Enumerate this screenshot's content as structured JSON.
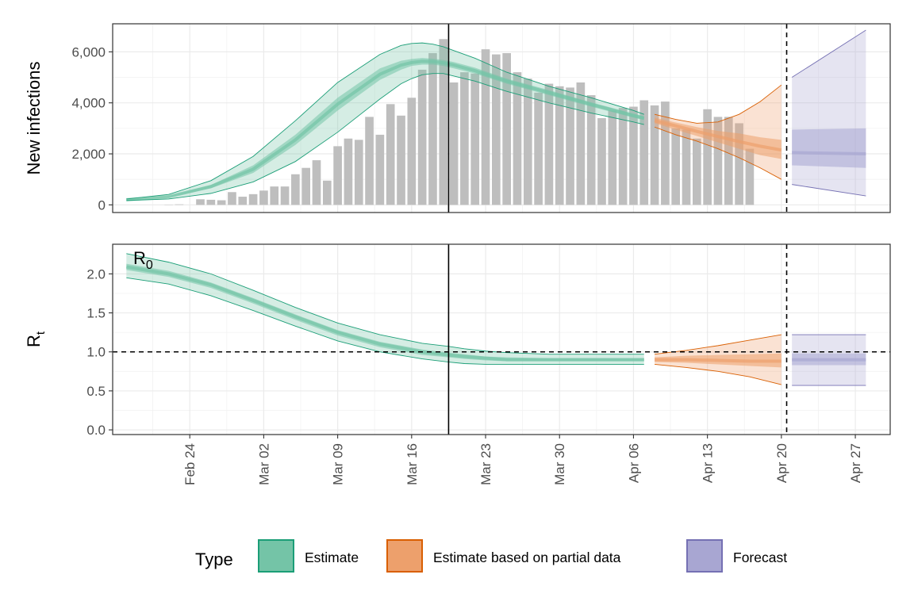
{
  "chart_data": {
    "type": "area",
    "x_tick_labels": [
      "Feb 24",
      "Mar 02",
      "Mar 09",
      "Mar 16",
      "Mar 23",
      "Mar 30",
      "Apr 06",
      "Apr 13",
      "Apr 20",
      "Apr 27"
    ],
    "x_tick_days": [
      0,
      7,
      14,
      21,
      28,
      35,
      42,
      49,
      56,
      63
    ],
    "x_range_days": [
      -7.3,
      66.3
    ],
    "vlines": [
      {
        "day": 24.5,
        "style": "solid"
      },
      {
        "day": 56.5,
        "style": "dashed"
      }
    ],
    "legend": {
      "title": "Type",
      "position": "bottom",
      "items": [
        {
          "label": "Estimate",
          "fill": "#74c4a7",
          "stroke": "#1b9e77"
        },
        {
          "label": "Estimate based on partial data",
          "fill": "#eda06c",
          "stroke": "#d95f02"
        },
        {
          "label": "Forecast",
          "fill": "#a8a6d2",
          "stroke": "#7570b3"
        }
      ]
    },
    "colors": {
      "Estimate": "#1b9e77",
      "Estimate based on partial data": "#d95f02",
      "Forecast": "#7570b3",
      "bars": "#bebebe"
    },
    "panels": [
      {
        "id": "infections",
        "ylabel": "New infections",
        "ylim": [
          -300,
          7100
        ],
        "yticks": [
          0,
          2000,
          4000,
          6000
        ],
        "ytick_labels": [
          "0",
          "2,000",
          "4,000",
          "6,000"
        ],
        "observed_bars": {
          "start_day": -3,
          "values": [
            0,
            10,
            20,
            0,
            220,
            200,
            180,
            500,
            320,
            420,
            560,
            720,
            720,
            1200,
            1450,
            1750,
            950,
            2300,
            2600,
            2550,
            3450,
            2750,
            3950,
            3500,
            4200,
            5300,
            5950,
            6500,
            4800,
            5200,
            5150,
            6100,
            5900,
            5950,
            5200,
            4950,
            4400,
            4750,
            4650,
            4600,
            4800,
            4300,
            3400,
            3700,
            3800,
            3850,
            4100,
            3900,
            4050,
            3000,
            2950,
            2600,
            3750,
            3450,
            3450,
            3200,
            2200
          ]
        },
        "bands": [
          {
            "type": "Estimate",
            "x": [
              -6,
              -2,
              2,
              6,
              10,
              14,
              18,
              20,
              21,
              22,
              23,
              24,
              25,
              27,
              30,
              34,
              38,
              42,
              43
            ],
            "lower90": [
              170,
              230,
              450,
              900,
              1700,
              2850,
              4150,
              4750,
              4950,
              5100,
              5150,
              5150,
              5050,
              4850,
              4450,
              4000,
              3600,
              3250,
              3150
            ],
            "upper90": [
              230,
              410,
              950,
              1900,
              3300,
              4800,
              5900,
              6250,
              6330,
              6350,
              6300,
              6200,
              6050,
              5750,
              5200,
              4650,
              4200,
              3700,
              3550
            ],
            "lower50": [
              190,
              300,
              650,
              1250,
              2350,
              3700,
              4900,
              5300,
              5450,
              5500,
              5500,
              5450,
              5350,
              5150,
              4750,
              4300,
              3850,
              3420,
              3330
            ],
            "upper50": [
              210,
              340,
              780,
              1550,
              2750,
              4200,
              5350,
              5650,
              5720,
              5760,
              5730,
              5680,
              5600,
              5380,
              4950,
              4500,
              4020,
              3580,
              3470
            ],
            "median": [
              200,
              320,
              720,
              1400,
              2550,
              3950,
              5120,
              5480,
              5580,
              5630,
              5620,
              5570,
              5480,
              5260,
              4850,
              4400,
              3940,
              3500,
              3400
            ]
          },
          {
            "type": "Estimate based on partial data",
            "x": [
              44,
              46,
              48,
              50,
              52,
              54,
              56
            ],
            "lower90": [
              3050,
              2750,
              2500,
              2200,
              1850,
              1450,
              1000
            ],
            "upper90": [
              3550,
              3350,
              3200,
              3250,
              3550,
              4050,
              4700
            ],
            "lower50": [
              3200,
              2950,
              2700,
              2450,
              2200,
              1950,
              1800
            ],
            "upper50": [
              3420,
              3230,
              3050,
              2900,
              2800,
              2650,
              2550
            ],
            "median": [
              3300,
              3100,
              2880,
              2680,
              2480,
              2300,
              2150
            ]
          },
          {
            "type": "Forecast",
            "x": [
              57,
              64
            ],
            "lower90": [
              800,
              350
            ],
            "upper90": [
              5000,
              6850
            ],
            "lower50": [
              1550,
              1450
            ],
            "upper50": [
              2950,
              3000
            ],
            "median": [
              2050,
              2000
            ]
          }
        ]
      },
      {
        "id": "rt",
        "ylabel": "R",
        "ylabel_subscript": "t",
        "annotation": {
          "text": "R",
          "subscript": "0"
        },
        "ylim": [
          -0.06,
          2.38
        ],
        "yticks": [
          0,
          0.5,
          1,
          1.5,
          2
        ],
        "ytick_labels": [
          "0.0",
          "0.5",
          "1.0",
          "1.5",
          "2.0"
        ],
        "hline": {
          "y": 1.0,
          "style": "dashed"
        },
        "bands": [
          {
            "type": "Estimate",
            "x": [
              -6,
              -2,
              2,
              6,
              10,
              14,
              18,
              22,
              24.5,
              26,
              28,
              30,
              34,
              38,
              42,
              43
            ],
            "lower90": [
              1.95,
              1.87,
              1.72,
              1.53,
              1.33,
              1.14,
              1.0,
              0.91,
              0.87,
              0.85,
              0.84,
              0.84,
              0.84,
              0.84,
              0.84,
              0.84
            ],
            "upper90": [
              2.26,
              2.15,
              2.0,
              1.79,
              1.57,
              1.37,
              1.22,
              1.11,
              1.07,
              1.04,
              1.01,
              0.99,
              0.97,
              0.97,
              0.97,
              0.97
            ],
            "lower50": [
              2.05,
              1.96,
              1.82,
              1.62,
              1.41,
              1.21,
              1.06,
              0.96,
              0.93,
              0.91,
              0.89,
              0.88,
              0.88,
              0.88,
              0.88,
              0.88
            ],
            "upper50": [
              2.13,
              2.04,
              1.89,
              1.69,
              1.48,
              1.28,
              1.13,
              1.03,
              0.99,
              0.97,
              0.94,
              0.93,
              0.92,
              0.92,
              0.92,
              0.92
            ],
            "median": [
              2.09,
              2.0,
              1.86,
              1.66,
              1.45,
              1.25,
              1.1,
              1.0,
              0.96,
              0.94,
              0.92,
              0.9,
              0.9,
              0.9,
              0.9,
              0.9
            ]
          },
          {
            "type": "Estimate based on partial data",
            "x": [
              44,
              47,
              50,
              53,
              56
            ],
            "lower90": [
              0.84,
              0.8,
              0.75,
              0.68,
              0.58
            ],
            "upper90": [
              0.97,
              1.02,
              1.08,
              1.15,
              1.22
            ],
            "lower50": [
              0.87,
              0.86,
              0.84,
              0.82,
              0.8
            ],
            "upper50": [
              0.93,
              0.95,
              0.96,
              0.97,
              0.98
            ],
            "median": [
              0.9,
              0.9,
              0.89,
              0.88,
              0.88
            ]
          },
          {
            "type": "Forecast",
            "x": [
              57,
              64
            ],
            "lower90": [
              0.57,
              0.57
            ],
            "upper90": [
              1.22,
              1.22
            ],
            "lower50": [
              0.83,
              0.83
            ],
            "upper50": [
              0.98,
              0.98
            ],
            "median": [
              0.9,
              0.9
            ]
          }
        ]
      }
    ]
  }
}
